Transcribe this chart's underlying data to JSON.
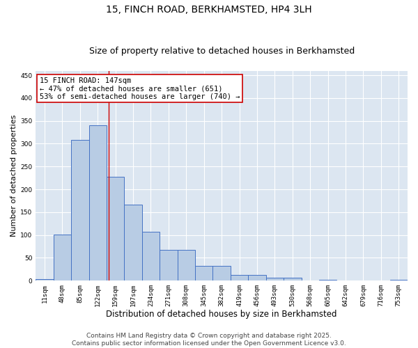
{
  "title1": "15, FINCH ROAD, BERKHAMSTED, HP4 3LH",
  "title2": "Size of property relative to detached houses in Berkhamsted",
  "xlabel": "Distribution of detached houses by size in Berkhamsted",
  "ylabel": "Number of detached properties",
  "categories": [
    "11sqm",
    "48sqm",
    "85sqm",
    "122sqm",
    "159sqm",
    "197sqm",
    "234sqm",
    "271sqm",
    "308sqm",
    "345sqm",
    "382sqm",
    "419sqm",
    "456sqm",
    "493sqm",
    "530sqm",
    "568sqm",
    "605sqm",
    "642sqm",
    "679sqm",
    "716sqm",
    "753sqm"
  ],
  "values": [
    4,
    101,
    308,
    341,
    228,
    167,
    107,
    67,
    67,
    32,
    32,
    12,
    12,
    6,
    6,
    0,
    2,
    0,
    0,
    0,
    2
  ],
  "bar_color": "#b8cce4",
  "bar_edge_color": "#4472c4",
  "bg_color": "#dce6f1",
  "grid_color": "#ffffff",
  "annotation_box_text": "15 FINCH ROAD: 147sqm\n← 47% of detached houses are smaller (651)\n53% of semi-detached houses are larger (740) →",
  "annotation_box_color": "#ffffff",
  "annotation_box_edge": "#cc0000",
  "vline_x_index": 3.62,
  "vline_color": "#cc0000",
  "ylim": [
    0,
    460
  ],
  "yticks": [
    0,
    50,
    100,
    150,
    200,
    250,
    300,
    350,
    400,
    450
  ],
  "footer": "Contains HM Land Registry data © Crown copyright and database right 2025.\nContains public sector information licensed under the Open Government Licence v3.0.",
  "title1_fontsize": 10,
  "title2_fontsize": 9,
  "xlabel_fontsize": 8.5,
  "ylabel_fontsize": 8,
  "tick_fontsize": 6.5,
  "annotation_fontsize": 7.5,
  "footer_fontsize": 6.5
}
